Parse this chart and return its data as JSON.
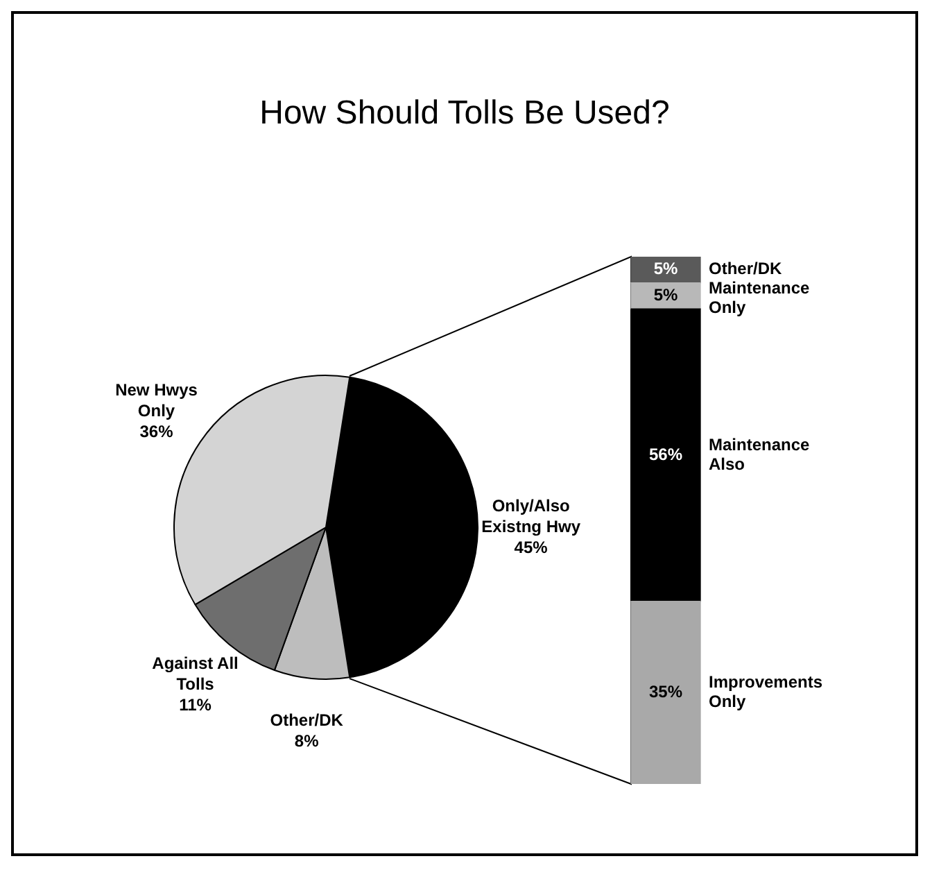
{
  "chart_data": [
    {
      "type": "pie",
      "title": "How Should Tolls Be Used?",
      "categories": [
        "Only/Also Existng Hwy",
        "Other/DK",
        "Against All Tolls",
        "New Hwys Only"
      ],
      "values": [
        45,
        8,
        11,
        36
      ],
      "value_labels": [
        "45%",
        "8%",
        "11%",
        "36%"
      ],
      "colors": [
        "#000000",
        "#bdbdbd",
        "#6e6e6e",
        "#d4d4d4"
      ]
    },
    {
      "type": "bar",
      "stacked": true,
      "categories": [
        null
      ],
      "tick_labels": false,
      "series": [
        {
          "name": "Improvements Only",
          "color": "#a9a9a9",
          "values": [
            35
          ],
          "value_labels": [
            "35%"
          ]
        },
        {
          "name": "Maintenance Also",
          "color": "#000000",
          "values": [
            56
          ],
          "value_labels": [
            "56%"
          ]
        },
        {
          "name": "Maintenance Only",
          "color": "#b8b8b8",
          "values": [
            5
          ],
          "value_labels": [
            "5%"
          ]
        },
        {
          "name": "Other/DK",
          "color": "#5a5a5a",
          "values": [
            5
          ],
          "value_labels": [
            "5%"
          ]
        }
      ]
    }
  ]
}
